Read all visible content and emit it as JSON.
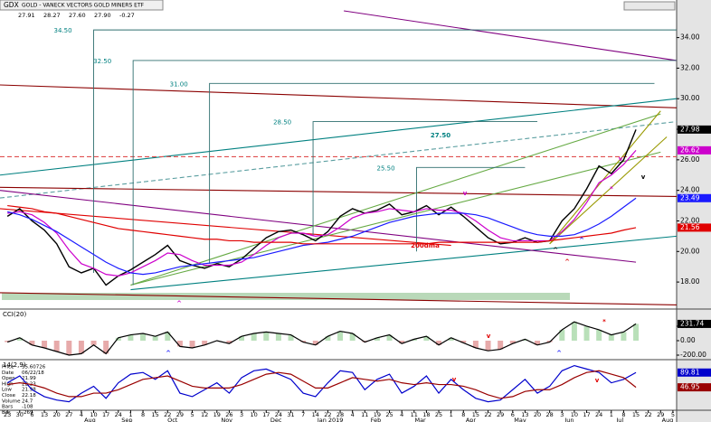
{
  "header": {
    "symbol": "GDX",
    "title": "GOLD - VANECK VECTORS GOLD MINERS ETF",
    "quotes": [
      "27.91",
      "28.27",
      "27.60",
      "27.90",
      "-0.27"
    ]
  },
  "info": [
    [
      "Price",
      "35.60726"
    ],
    [
      "Date",
      "06/22/18"
    ],
    [
      "Open",
      "21.99"
    ],
    [
      "High",
      "22.23"
    ],
    [
      "Low",
      "21.98"
    ],
    [
      "Close",
      "22.18"
    ],
    [
      "Volume",
      "24.7"
    ],
    [
      "Bars",
      "-108"
    ],
    [
      "Bar",
      "-269"
    ]
  ],
  "chart_data": [
    {
      "type": "line",
      "xlim": [
        -0.6,
        54.3
      ],
      "ylim": [
        16.35,
        35.75
      ],
      "yticks": [
        {
          "value": 34,
          "label": "34.00"
        },
        {
          "value": 32,
          "label": "32.00"
        },
        {
          "value": 30,
          "label": "30.00"
        },
        {
          "value": 28,
          "label": "28.00"
        },
        {
          "value": 26,
          "label": "26.00"
        },
        {
          "value": 24,
          "label": "24.00"
        },
        {
          "value": 22,
          "label": "22.00"
        },
        {
          "value": 20,
          "label": "20.00"
        },
        {
          "value": 18,
          "label": "18.00"
        }
      ],
      "x": [
        0,
        1,
        2,
        3,
        4,
        5,
        6,
        7,
        8,
        9,
        10,
        11,
        12,
        13,
        14,
        15,
        16,
        17,
        18,
        19,
        20,
        21,
        22,
        23,
        24,
        25,
        26,
        27,
        28,
        29,
        30,
        31,
        32,
        33,
        34,
        35,
        36,
        37,
        38,
        39,
        40,
        41,
        42,
        43,
        44,
        45,
        46,
        47,
        48,
        49,
        50,
        51
      ],
      "series": [
        {
          "color": "#000000",
          "values": [
            22.3,
            22.8,
            22.0,
            21.4,
            20.5,
            19.0,
            18.6,
            18.9,
            17.8,
            18.4,
            18.8,
            19.3,
            19.8,
            20.4,
            19.4,
            19.1,
            18.9,
            19.2,
            19.0,
            19.5,
            20.2,
            20.9,
            21.3,
            21.4,
            21.1,
            20.7,
            21.3,
            22.3,
            22.8,
            22.5,
            22.7,
            23.1,
            22.4,
            22.6,
            23.0,
            22.4,
            22.9,
            22.3,
            21.6,
            20.9,
            20.5,
            20.6,
            20.9,
            20.6,
            20.7,
            22.0,
            22.8,
            24.1,
            25.6,
            25.1,
            26.0,
            27.98
          ]
        },
        {
          "color": "#cc00cc",
          "values": [
            22.5,
            22.6,
            22.4,
            21.9,
            21.2,
            20.1,
            19.2,
            18.9,
            18.5,
            18.4,
            18.6,
            19.0,
            19.4,
            19.9,
            19.8,
            19.4,
            19.1,
            19.1,
            19.1,
            19.3,
            19.8,
            20.4,
            20.9,
            21.2,
            21.2,
            21.0,
            21.1,
            21.6,
            22.2,
            22.5,
            22.6,
            22.8,
            22.7,
            22.6,
            22.8,
            22.7,
            22.7,
            22.5,
            22.0,
            21.4,
            20.9,
            20.7,
            20.7,
            20.7,
            20.7,
            21.3,
            22.1,
            23.2,
            24.5,
            25.0,
            25.7,
            26.62
          ]
        },
        {
          "color": "#1a1aff",
          "values": [
            22.6,
            22.4,
            22.1,
            21.7,
            21.3,
            20.8,
            20.3,
            19.8,
            19.3,
            18.9,
            18.6,
            18.5,
            18.6,
            18.8,
            19.0,
            19.1,
            19.2,
            19.3,
            19.4,
            19.5,
            19.6,
            19.8,
            20.0,
            20.2,
            20.4,
            20.5,
            20.6,
            20.8,
            21.0,
            21.3,
            21.6,
            21.9,
            22.1,
            22.3,
            22.4,
            22.5,
            22.5,
            22.5,
            22.4,
            22.2,
            21.9,
            21.6,
            21.3,
            21.1,
            21.0,
            21.0,
            21.1,
            21.4,
            21.8,
            22.3,
            22.9,
            23.49
          ]
        },
        {
          "color": "#e00000",
          "values": [
            23.0,
            22.9,
            22.8,
            22.6,
            22.5,
            22.3,
            22.1,
            21.9,
            21.7,
            21.5,
            21.4,
            21.3,
            21.2,
            21.1,
            21.0,
            20.9,
            20.8,
            20.8,
            20.7,
            20.7,
            20.6,
            20.6,
            20.6,
            20.6,
            20.5,
            20.5,
            20.5,
            20.5,
            20.5,
            20.5,
            20.5,
            20.5,
            20.5,
            20.5,
            20.5,
            20.6,
            20.6,
            20.6,
            20.6,
            20.6,
            20.6,
            20.6,
            20.6,
            20.6,
            20.7,
            20.8,
            20.9,
            21.0,
            21.1,
            21.2,
            21.4,
            21.56
          ]
        }
      ],
      "trendlines": [
        {
          "color": "#800080",
          "from": [
            27.3,
            35.75
          ],
          "to": [
            54.3,
            32.5
          ]
        },
        {
          "color": "#8b0000",
          "from": [
            -0.6,
            30.9
          ],
          "to": [
            54.3,
            29.4
          ]
        },
        {
          "color": "#008080",
          "from": [
            -0.6,
            25.0
          ],
          "to": [
            54.3,
            30.0
          ]
        },
        {
          "color": "#5a9ea0",
          "dash": true,
          "from": [
            -0.6,
            23.5
          ],
          "to": [
            54.3,
            28.5
          ]
        },
        {
          "color": "#e05050",
          "dash": true,
          "from": [
            -0.6,
            26.2
          ],
          "to": [
            54.3,
            26.2
          ]
        },
        {
          "color": "#008080",
          "from": [
            10,
            17.5
          ],
          "to": [
            54.3,
            21.0
          ]
        },
        {
          "color": "#800080",
          "from": [
            -0.6,
            24.0
          ],
          "to": [
            51,
            19.3
          ]
        },
        {
          "color": "#8b0000",
          "from": [
            -0.6,
            17.3
          ],
          "to": [
            54.3,
            16.5
          ]
        },
        {
          "color": "#8b0000",
          "from": [
            -0.6,
            24.2
          ],
          "to": [
            54.3,
            23.6
          ]
        },
        {
          "color": "#e00000",
          "from": [
            -0.6,
            22.8
          ],
          "to": [
            36,
            20.4
          ]
        },
        {
          "color": "#66aa44",
          "from": [
            10,
            17.8
          ],
          "to": [
            53,
            29.0
          ]
        },
        {
          "color": "#66aa44",
          "from": [
            10,
            17.8
          ],
          "to": [
            53,
            26.5
          ]
        },
        {
          "color": "#999900",
          "from": [
            44,
            20.5
          ],
          "to": [
            53,
            29.2
          ]
        },
        {
          "color": "#999900",
          "from": [
            44,
            20.5
          ],
          "to": [
            53.5,
            27.5
          ]
        }
      ],
      "targets": [
        {
          "label": "34.50",
          "x": 7,
          "base": 18.6,
          "level": 34.5,
          "end": 54.3
        },
        {
          "label": "32.50",
          "x": 10.2,
          "base": 17.8,
          "level": 32.5,
          "end": 54.3
        },
        {
          "label": "31.00",
          "x": 16.4,
          "base": 19.2,
          "level": 31.0,
          "end": 52.5
        },
        {
          "label": "28.50",
          "x": 24.8,
          "base": 21.0,
          "level": 28.5,
          "end": 43
        },
        {
          "label": "25.50",
          "x": 33.2,
          "base": 20.0,
          "level": 25.5,
          "end": 42
        }
      ],
      "annotations": [
        "27.50",
        "200dma",
        "^",
        "v",
        "^",
        "^",
        "v",
        "*",
        "^",
        "v"
      ]
    },
    {
      "type": "line",
      "title": "CCI(20)",
      "xlim": [
        -0.6,
        54.3
      ],
      "ylim": [
        -250,
        412
      ],
      "yticks": [
        {
          "value": 200,
          "label": "200.00"
        },
        {
          "value": 0,
          "label": "0.00"
        },
        {
          "value": -200,
          "label": "-200.00"
        }
      ],
      "x": [
        0,
        1,
        2,
        3,
        4,
        5,
        6,
        7,
        8,
        9,
        10,
        11,
        12,
        13,
        14,
        15,
        16,
        17,
        18,
        19,
        20,
        21,
        22,
        23,
        24,
        25,
        26,
        27,
        28,
        29,
        30,
        31,
        32,
        33,
        34,
        35,
        36,
        37,
        38,
        39,
        40,
        41,
        42,
        43,
        44,
        45,
        46,
        47,
        48,
        49,
        50,
        51
      ],
      "series": [
        {
          "color": "#000000",
          "values": [
            -20,
            40,
            -60,
            -100,
            -150,
            -200,
            -180,
            -60,
            -180,
            40,
            80,
            100,
            60,
            120,
            -80,
            -100,
            -60,
            0,
            -40,
            60,
            100,
            120,
            100,
            80,
            -20,
            -60,
            60,
            130,
            100,
            -20,
            40,
            80,
            -40,
            20,
            60,
            -60,
            40,
            -30,
            -100,
            -140,
            -120,
            -40,
            20,
            -60,
            -20,
            150,
            260,
            200,
            150,
            80,
            120,
            231.74
          ]
        }
      ],
      "annotations": [
        "^",
        "v",
        "^",
        "*"
      ]
    },
    {
      "type": "line",
      "title": "14(2,9)",
      "xlim": [
        -0.6,
        54.3
      ],
      "ylim": [
        -17,
        122
      ],
      "x": [
        0,
        1,
        2,
        3,
        4,
        5,
        6,
        7,
        8,
        9,
        10,
        11,
        12,
        13,
        14,
        15,
        16,
        17,
        18,
        19,
        20,
        21,
        22,
        23,
        24,
        25,
        26,
        27,
        28,
        29,
        30,
        31,
        32,
        33,
        34,
        35,
        36,
        37,
        38,
        39,
        40,
        41,
        42,
        43,
        44,
        45,
        46,
        47,
        48,
        49,
        50,
        51
      ],
      "series": [
        {
          "color": "#0000cc",
          "values": [
            60,
            80,
            40,
            20,
            10,
            5,
            30,
            50,
            15,
            60,
            85,
            90,
            70,
            95,
            30,
            20,
            40,
            60,
            30,
            75,
            95,
            100,
            85,
            70,
            30,
            20,
            60,
            95,
            90,
            40,
            70,
            85,
            30,
            50,
            80,
            30,
            70,
            40,
            15,
            5,
            10,
            40,
            70,
            30,
            50,
            95,
            110,
            100,
            90,
            60,
            70,
            89.81
          ]
        },
        {
          "color": "#990000",
          "values": [
            55,
            60,
            55,
            45,
            30,
            20,
            20,
            30,
            30,
            40,
            55,
            70,
            75,
            80,
            65,
            50,
            45,
            45,
            45,
            55,
            70,
            85,
            90,
            85,
            65,
            45,
            45,
            60,
            75,
            70,
            65,
            70,
            60,
            55,
            60,
            55,
            55,
            50,
            40,
            25,
            15,
            20,
            35,
            40,
            40,
            55,
            75,
            90,
            95,
            85,
            75,
            46.95
          ]
        }
      ],
      "annotations": [
        "v",
        "v"
      ],
      "xticks": [
        {
          "value": 0,
          "label": "23"
        },
        {
          "value": 1,
          "label": "30"
        },
        {
          "value": 2,
          "label": "6"
        },
        {
          "value": 3,
          "label": "13"
        },
        {
          "value": 4,
          "label": "20"
        },
        {
          "value": 5,
          "label": "27"
        },
        {
          "value": 6,
          "label": "4"
        },
        {
          "value": 7,
          "label": "10"
        },
        {
          "value": 8,
          "label": "17"
        },
        {
          "value": 9,
          "label": "24"
        },
        {
          "value": 10,
          "label": "1"
        },
        {
          "value": 11,
          "label": "8"
        },
        {
          "value": 12,
          "label": "15"
        },
        {
          "value": 13,
          "label": "22"
        },
        {
          "value": 14,
          "label": "29"
        },
        {
          "value": 15,
          "label": "5"
        },
        {
          "value": 16,
          "label": "12"
        },
        {
          "value": 17,
          "label": "19"
        },
        {
          "value": 18,
          "label": "26"
        },
        {
          "value": 19,
          "label": "3"
        },
        {
          "value": 20,
          "label": "10"
        },
        {
          "value": 21,
          "label": "17"
        },
        {
          "value": 22,
          "label": "24"
        },
        {
          "value": 23,
          "label": "31"
        },
        {
          "value": 24,
          "label": "7"
        },
        {
          "value": 25,
          "label": "14"
        },
        {
          "value": 26,
          "label": "22"
        },
        {
          "value": 27,
          "label": "28"
        },
        {
          "value": 28,
          "label": "4"
        },
        {
          "value": 29,
          "label": "11"
        },
        {
          "value": 30,
          "label": "19"
        },
        {
          "value": 31,
          "label": "25"
        },
        {
          "value": 32,
          "label": "4"
        },
        {
          "value": 33,
          "label": "11"
        },
        {
          "value": 34,
          "label": "18"
        },
        {
          "value": 35,
          "label": "25"
        },
        {
          "value": 36,
          "label": "1"
        },
        {
          "value": 37,
          "label": "8"
        },
        {
          "value": 38,
          "label": "15"
        },
        {
          "value": 39,
          "label": "22"
        },
        {
          "value": 40,
          "label": "29"
        },
        {
          "value": 41,
          "label": "6"
        },
        {
          "value": 42,
          "label": "13"
        },
        {
          "value": 43,
          "label": "20"
        },
        {
          "value": 44,
          "label": "28"
        },
        {
          "value": 45,
          "label": "3"
        },
        {
          "value": 46,
          "label": "10"
        },
        {
          "value": 47,
          "label": "17"
        },
        {
          "value": 48,
          "label": "24"
        },
        {
          "value": 49,
          "label": "1"
        },
        {
          "value": 50,
          "label": "8"
        },
        {
          "value": 51,
          "label": "15"
        },
        {
          "value": 52,
          "label": "22"
        },
        {
          "value": 53,
          "label": "29"
        },
        {
          "value": 54,
          "label": "5"
        }
      ],
      "months": [
        {
          "value": 6.7,
          "label": "Aug"
        },
        {
          "value": 9.7,
          "label": "Sep"
        },
        {
          "value": 13.4,
          "label": "Oct"
        },
        {
          "value": 17.8,
          "label": "Nov"
        },
        {
          "value": 21.8,
          "label": "Dec"
        },
        {
          "value": 26.2,
          "label": "Jan 2019"
        },
        {
          "value": 29.9,
          "label": "Feb"
        },
        {
          "value": 33.5,
          "label": "Mar"
        },
        {
          "value": 37.6,
          "label": "Apr"
        },
        {
          "value": 41.6,
          "label": "May"
        },
        {
          "value": 45.6,
          "label": "Jun"
        },
        {
          "value": 49.7,
          "label": "Jul"
        },
        {
          "value": 54.1,
          "label": "Aug"
        }
      ]
    }
  ]
}
